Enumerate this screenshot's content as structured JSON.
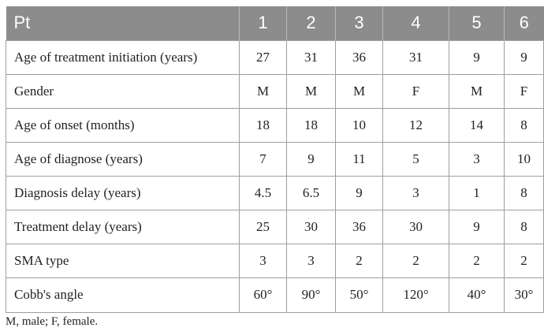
{
  "table": {
    "header": [
      "Pt",
      "1",
      "2",
      "3",
      "4",
      "5",
      "6"
    ],
    "rows": [
      {
        "label": "Age of treatment initiation (years)",
        "values": [
          "27",
          "31",
          "36",
          "31",
          "9",
          "9"
        ]
      },
      {
        "label": "Gender",
        "values": [
          "M",
          "M",
          "M",
          "F",
          "M",
          "F"
        ]
      },
      {
        "label": "Age of onset (months)",
        "values": [
          "18",
          "18",
          "10",
          "12",
          "14",
          "8"
        ]
      },
      {
        "label": "Age of diagnose (years)",
        "values": [
          "7",
          "9",
          "11",
          "5",
          "3",
          "10"
        ]
      },
      {
        "label": "Diagnosis delay (years)",
        "values": [
          "4.5",
          "6.5",
          "9",
          "3",
          "1",
          "8"
        ]
      },
      {
        "label": "Treatment delay (years)",
        "values": [
          "25",
          "30",
          "36",
          "30",
          "9",
          "8"
        ]
      },
      {
        "label": "SMA type",
        "values": [
          "3",
          "3",
          "2",
          "2",
          "2",
          "2"
        ]
      },
      {
        "label": "Cobb's angle",
        "values": [
          "60°",
          "90°",
          "50°",
          "120°",
          "40°",
          "30°"
        ]
      }
    ]
  },
  "footnote": "M, male; F, female.",
  "colors": {
    "header_bg": "#8c8c8c",
    "header_text": "#ffffff",
    "border": "#9e9e9e"
  }
}
